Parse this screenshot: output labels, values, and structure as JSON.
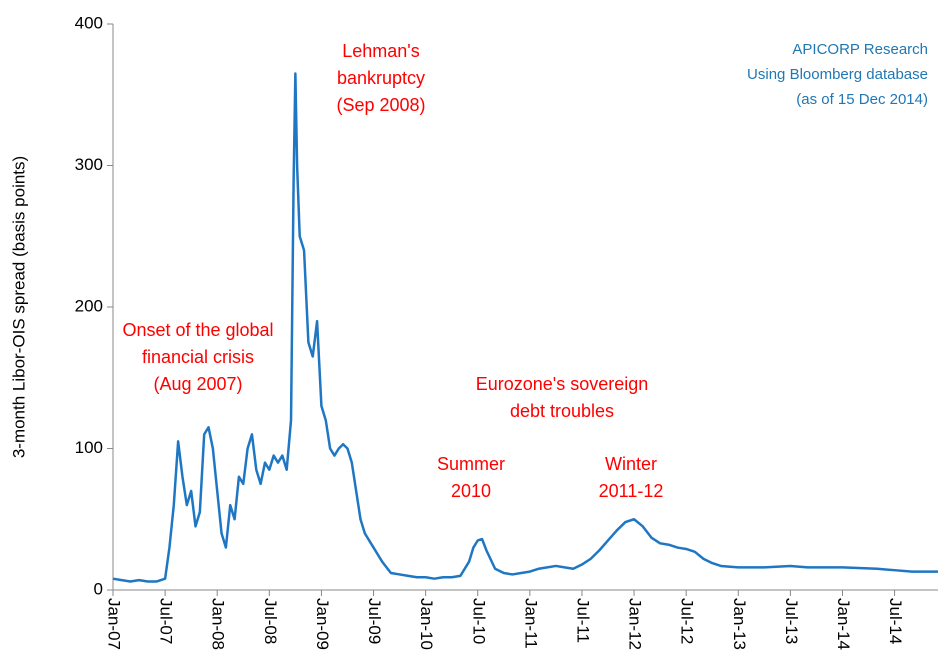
{
  "chart_data": {
    "type": "line",
    "ylabel": "3-month Libor-OIS spread (basis points)",
    "xlim": [
      0,
      95
    ],
    "ylim": [
      0,
      400
    ],
    "yticks": [
      0,
      100,
      200,
      300,
      400
    ],
    "xticks": [
      {
        "value": 0,
        "label": "Jan-07"
      },
      {
        "value": 6,
        "label": "Jul-07"
      },
      {
        "value": 12,
        "label": "Jan-08"
      },
      {
        "value": 18,
        "label": "Jul-08"
      },
      {
        "value": 24,
        "label": "Jan-09"
      },
      {
        "value": 30,
        "label": "Jul-09"
      },
      {
        "value": 36,
        "label": "Jan-10"
      },
      {
        "value": 42,
        "label": "Jul-10"
      },
      {
        "value": 48,
        "label": "Jan-11"
      },
      {
        "value": 54,
        "label": "Jul-11"
      },
      {
        "value": 60,
        "label": "Jan-12"
      },
      {
        "value": 66,
        "label": "Jul-12"
      },
      {
        "value": 72,
        "label": "Jan-13"
      },
      {
        "value": 78,
        "label": "Jul-13"
      },
      {
        "value": 84,
        "label": "Jan-14"
      },
      {
        "value": 90,
        "label": "Jul-14"
      }
    ],
    "series": [
      {
        "color": "#1f77c4",
        "x": [
          0,
          1,
          2,
          3,
          4,
          5,
          6,
          6.5,
          7,
          7.5,
          8,
          8.5,
          9,
          9.5,
          10,
          10.5,
          11,
          11.5,
          12,
          12.5,
          13,
          13.5,
          14,
          14.5,
          15,
          15.5,
          16,
          16.5,
          17,
          17.5,
          18,
          18.5,
          19,
          19.5,
          20,
          20.5,
          20.8,
          21,
          21.2,
          21.5,
          22,
          22.5,
          23,
          23.5,
          24,
          24.5,
          25,
          25.5,
          26,
          26.5,
          27,
          27.5,
          28,
          28.5,
          29,
          30,
          31,
          32,
          33,
          34,
          35,
          36,
          37,
          38,
          39,
          40,
          41,
          41.5,
          42,
          42.5,
          43,
          44,
          45,
          46,
          47,
          48,
          49,
          50,
          51,
          52,
          53,
          54,
          55,
          56,
          57,
          58,
          59,
          60,
          61,
          62,
          63,
          64,
          65,
          66,
          67,
          68,
          69,
          70,
          72,
          75,
          78,
          80,
          84,
          88,
          90,
          92,
          95
        ],
        "values": [
          8,
          7,
          6,
          7,
          6,
          6,
          8,
          30,
          60,
          105,
          80,
          60,
          70,
          45,
          55,
          110,
          115,
          100,
          70,
          40,
          30,
          60,
          50,
          80,
          75,
          100,
          110,
          85,
          75,
          90,
          85,
          95,
          90,
          95,
          85,
          120,
          290,
          365,
          300,
          250,
          240,
          175,
          165,
          190,
          130,
          120,
          100,
          95,
          100,
          103,
          100,
          90,
          70,
          50,
          40,
          30,
          20,
          12,
          11,
          10,
          9,
          9,
          8,
          9,
          9,
          10,
          20,
          30,
          35,
          36,
          28,
          15,
          12,
          11,
          12,
          13,
          15,
          16,
          17,
          16,
          15,
          18,
          22,
          28,
          35,
          42,
          48,
          50,
          45,
          37,
          33,
          32,
          30,
          29,
          27,
          22,
          19,
          17,
          16,
          16,
          17,
          16,
          16,
          15,
          14,
          13,
          13
        ]
      }
    ],
    "annotations": [
      [
        "Lehman's",
        "bankruptcy",
        "(Sep 2008)"
      ],
      [
        "Onset of the global",
        "financial crisis",
        "(Aug 2007)"
      ],
      [
        "Eurozone's sovereign",
        "debt troubles"
      ],
      [
        "Summer",
        "2010"
      ],
      [
        "Winter",
        "2011-12"
      ]
    ],
    "source": [
      "APICORP Research",
      "Using Bloomberg database",
      "(as of 15 Dec 2014)"
    ]
  }
}
